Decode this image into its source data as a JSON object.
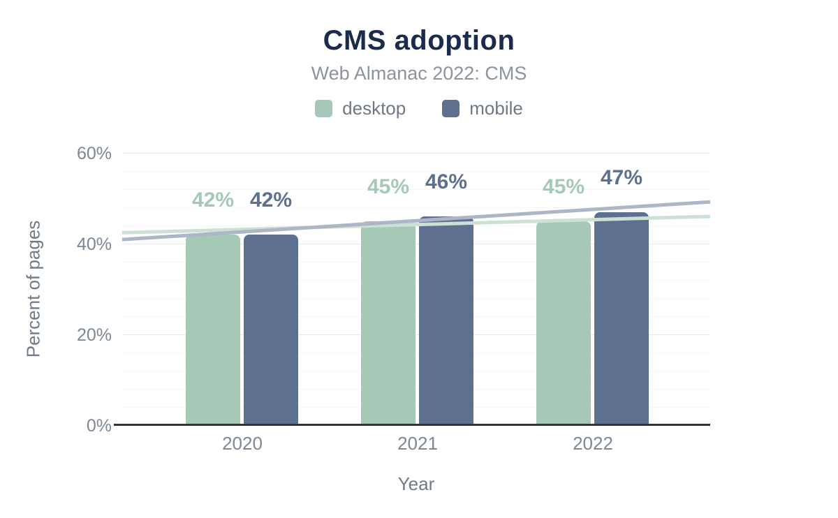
{
  "chart_data": {
    "type": "bar",
    "title": "CMS adoption",
    "subtitle": "Web Almanac 2022: CMS",
    "xlabel": "Year",
    "ylabel": "Percent of pages",
    "categories": [
      "2020",
      "2021",
      "2022"
    ],
    "series": [
      {
        "name": "desktop",
        "values": [
          42,
          45,
          45
        ],
        "labels": [
          "42%",
          "45%",
          "45%"
        ],
        "color": "#a6c9b7"
      },
      {
        "name": "mobile",
        "values": [
          42,
          46,
          47
        ],
        "labels": [
          "42%",
          "46%",
          "47%"
        ],
        "color": "#5e7090"
      }
    ],
    "trendlines": [
      {
        "series": "desktop",
        "start": 42.4,
        "end": 46.0,
        "color": "#cde0d4"
      },
      {
        "series": "mobile",
        "start": 40.9,
        "end": 49.2,
        "color": "#adb6c6"
      }
    ],
    "ylim": [
      0,
      60
    ],
    "yticks": [
      {
        "value": 0,
        "label": "0%"
      },
      {
        "value": 20,
        "label": "20%"
      },
      {
        "value": 40,
        "label": "40%"
      },
      {
        "value": 60,
        "label": "60%"
      }
    ],
    "minor_grid_step": 4,
    "grid": true,
    "legend_position": "top"
  },
  "colors": {
    "title": "#1a2b4d",
    "subtitle": "#8c939c",
    "legend_text": "#6e7883",
    "tick_text": "#7d8893",
    "axis_title_text": "#6f7a86",
    "axis_line": "#303238"
  }
}
